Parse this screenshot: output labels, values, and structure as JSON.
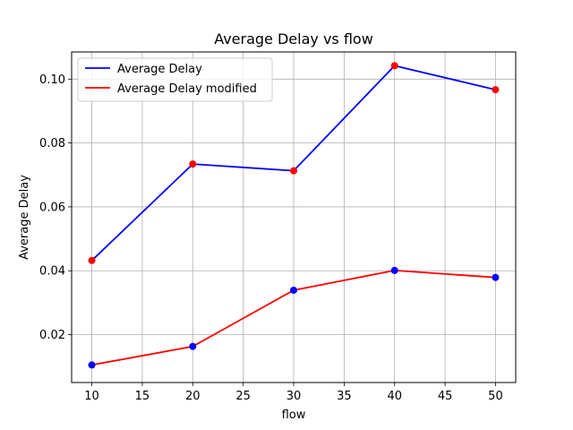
{
  "chart_data": {
    "type": "line",
    "title": "Average Delay vs flow",
    "xlabel": "flow",
    "ylabel": "Average Delay",
    "x": [
      10,
      20,
      30,
      40,
      50
    ],
    "xlim": [
      8,
      52
    ],
    "ylim": [
      0.005,
      0.1085
    ],
    "xticks": [
      10,
      15,
      20,
      25,
      30,
      35,
      40,
      45,
      50
    ],
    "yticks": [
      0.02,
      0.04,
      0.06,
      0.08,
      0.1
    ],
    "ytick_labels": [
      "0.02",
      "0.04",
      "0.06",
      "0.08",
      "0.10"
    ],
    "grid": true,
    "legend_position": "top-left",
    "series": [
      {
        "name": "Average Delay",
        "values": [
          0.0432,
          0.0734,
          0.0713,
          0.1042,
          0.0967
        ],
        "line_color": "#0000ff",
        "marker_color": "#ff0000"
      },
      {
        "name": "Average Delay modified",
        "values": [
          0.0105,
          0.0163,
          0.0339,
          0.0401,
          0.0379
        ],
        "line_color": "#ff0000",
        "marker_color": "#0000ff"
      }
    ]
  }
}
